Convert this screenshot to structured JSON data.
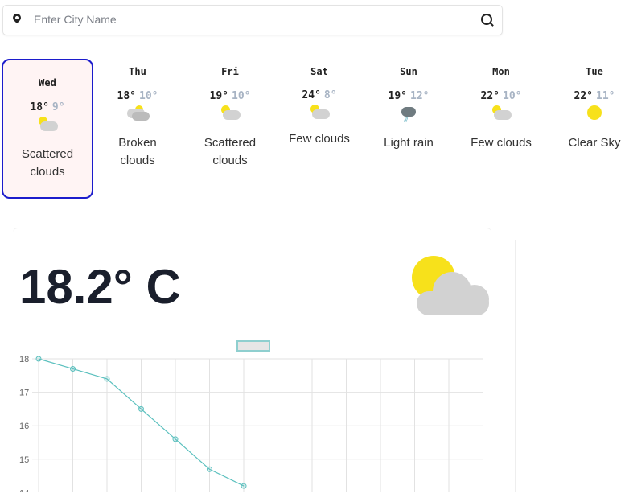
{
  "search": {
    "placeholder": "Enter City Name",
    "value": ""
  },
  "days": [
    {
      "day": "Wed",
      "high": "18°",
      "low": "9°",
      "icon": "sun-cloud",
      "desc": "Scattered clouds",
      "selected": true
    },
    {
      "day": "Thu",
      "high": "18°",
      "low": "10°",
      "icon": "broken-clouds",
      "desc": "Broken clouds"
    },
    {
      "day": "Fri",
      "high": "19°",
      "low": "10°",
      "icon": "sun-cloud",
      "desc": "Scattered clouds"
    },
    {
      "day": "Sat",
      "high": "24°",
      "low": "8°",
      "icon": "sun-cloud",
      "desc": "Few clouds"
    },
    {
      "day": "Sun",
      "high": "19°",
      "low": "12°",
      "icon": "rain",
      "desc": "Light rain"
    },
    {
      "day": "Mon",
      "high": "22°",
      "low": "10°",
      "icon": "sun-cloud",
      "desc": "Few clouds"
    },
    {
      "day": "Tue",
      "high": "22°",
      "low": "11°",
      "icon": "sun",
      "desc": "Clear Sky"
    }
  ],
  "current": {
    "temperature": "18.2° C",
    "icon": "sun-cloud"
  },
  "colors": {
    "selected_border": "#1c1ccc",
    "line": "#5bc0be",
    "sun": "#f7e11b"
  },
  "chart_data": {
    "type": "line",
    "series": [
      {
        "values": [
          18,
          17.7,
          17.4,
          16.5,
          15.6,
          14.7,
          14.2
        ]
      }
    ],
    "yticks": [
      "18",
      "17",
      "16",
      "15",
      "14"
    ],
    "ylim": [
      14,
      18
    ],
    "grid": true,
    "legend": "top"
  }
}
